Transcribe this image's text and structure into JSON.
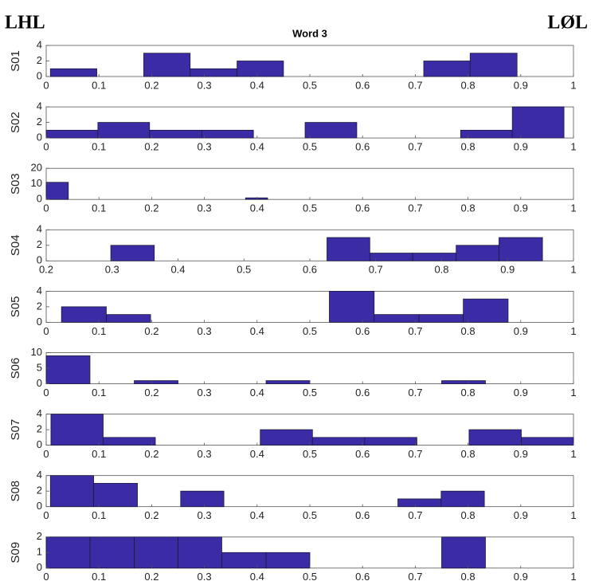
{
  "header": {
    "left": "LHL",
    "right": "LØL"
  },
  "chart_data": [
    {
      "type": "histogram",
      "title": "Word 3",
      "ylabel": "S01",
      "color": "#3b2ca6",
      "bins": [
        0.008,
        0.096,
        0.185,
        0.273,
        0.362,
        0.45,
        0.539,
        0.627,
        0.716,
        0.804,
        0.893
      ],
      "counts": [
        1,
        0,
        3,
        1,
        2,
        0,
        0,
        0,
        2,
        3
      ],
      "xlim": [
        0,
        1
      ],
      "xticks": [
        0,
        0.1,
        0.2,
        0.3,
        0.4,
        0.5,
        0.6,
        0.7,
        0.8,
        0.9,
        1
      ],
      "ylim": [
        0,
        4
      ],
      "yticks": [
        0,
        2,
        4
      ]
    },
    {
      "type": "histogram",
      "ylabel": "S02",
      "color": "#3b2ca6",
      "bins": [
        0,
        0.098,
        0.196,
        0.295,
        0.393,
        0.491,
        0.589,
        0.687,
        0.786,
        0.884,
        0.982
      ],
      "counts": [
        1,
        2,
        1,
        1,
        0,
        2,
        0,
        0,
        1,
        4
      ],
      "xlim": [
        0,
        1
      ],
      "xticks": [
        0,
        0.1,
        0.2,
        0.3,
        0.4,
        0.5,
        0.6,
        0.7,
        0.8,
        0.9,
        1
      ],
      "ylim": [
        0,
        4
      ],
      "yticks": [
        0,
        2,
        4
      ]
    },
    {
      "type": "histogram",
      "ylabel": "S03",
      "color": "#3b2ca6",
      "bins": [
        0,
        0.042,
        0.084,
        0.126,
        0.168,
        0.21,
        0.252,
        0.294,
        0.336,
        0.378,
        0.42
      ],
      "counts": [
        11,
        0,
        0,
        0,
        0,
        0,
        0,
        0,
        0,
        1
      ],
      "xlim": [
        0,
        1
      ],
      "xticks": [
        0,
        0.1,
        0.2,
        0.3,
        0.4,
        0.5,
        0.6,
        0.7,
        0.8,
        0.9,
        1
      ],
      "ylim": [
        0,
        20
      ],
      "yticks": [
        0,
        10,
        20
      ]
    },
    {
      "type": "histogram",
      "ylabel": "S04",
      "color": "#3b2ca6",
      "bins": [
        0.298,
        0.364,
        0.429,
        0.495,
        0.56,
        0.626,
        0.691,
        0.756,
        0.822,
        0.887,
        0.953
      ],
      "counts": [
        2,
        0,
        0,
        0,
        0,
        3,
        1,
        1,
        2,
        3
      ],
      "xlim": [
        0.2,
        1
      ],
      "xticks": [
        0.2,
        0.3,
        0.4,
        0.5,
        0.6,
        0.7,
        0.8,
        0.9,
        1
      ],
      "ylim": [
        0,
        4
      ],
      "yticks": [
        0,
        2,
        4
      ]
    },
    {
      "type": "histogram",
      "ylabel": "S05",
      "color": "#3b2ca6",
      "bins": [
        0.029,
        0.114,
        0.198,
        0.283,
        0.368,
        0.452,
        0.537,
        0.622,
        0.707,
        0.791,
        0.876
      ],
      "counts": [
        2,
        1,
        0,
        0,
        0,
        0,
        4,
        1,
        1,
        3
      ],
      "xlim": [
        0,
        1
      ],
      "xticks": [
        0,
        0.1,
        0.2,
        0.3,
        0.4,
        0.5,
        0.6,
        0.7,
        0.8,
        0.9,
        1
      ],
      "ylim": [
        0,
        4
      ],
      "yticks": [
        0,
        2,
        4
      ]
    },
    {
      "type": "histogram",
      "ylabel": "S06",
      "color": "#3b2ca6",
      "bins": [
        0,
        0.083,
        0.167,
        0.25,
        0.333,
        0.417,
        0.5,
        0.583,
        0.667,
        0.75,
        0.833
      ],
      "counts": [
        9,
        0,
        1,
        0,
        0,
        1,
        0,
        0,
        0,
        1
      ],
      "xlim": [
        0,
        1
      ],
      "xticks": [
        0,
        0.1,
        0.2,
        0.3,
        0.4,
        0.5,
        0.6,
        0.7,
        0.8,
        0.9,
        1
      ],
      "ylim": [
        0,
        10
      ],
      "yticks": [
        0,
        5,
        10
      ]
    },
    {
      "type": "histogram",
      "ylabel": "S07",
      "color": "#3b2ca6",
      "bins": [
        0.009,
        0.108,
        0.207,
        0.306,
        0.406,
        0.505,
        0.604,
        0.703,
        0.802,
        0.901,
        1
      ],
      "counts": [
        4,
        1,
        0,
        0,
        2,
        1,
        1,
        0,
        2,
        1
      ],
      "xlim": [
        0,
        1
      ],
      "xticks": [
        0,
        0.1,
        0.2,
        0.3,
        0.4,
        0.5,
        0.6,
        0.7,
        0.8,
        0.9,
        1
      ],
      "ylim": [
        0,
        4
      ],
      "yticks": [
        0,
        2,
        4
      ]
    },
    {
      "type": "histogram",
      "ylabel": "S08",
      "color": "#3b2ca6",
      "bins": [
        0.008,
        0.09,
        0.173,
        0.255,
        0.337,
        0.42,
        0.502,
        0.584,
        0.667,
        0.749,
        0.831
      ],
      "counts": [
        4,
        3,
        0,
        2,
        0,
        0,
        0,
        0,
        1,
        2
      ],
      "xlim": [
        0,
        1
      ],
      "xticks": [
        0,
        0.1,
        0.2,
        0.3,
        0.4,
        0.5,
        0.6,
        0.7,
        0.8,
        0.9,
        1
      ],
      "ylim": [
        0,
        4
      ],
      "yticks": [
        0,
        2,
        4
      ]
    },
    {
      "type": "histogram",
      "ylabel": "S09",
      "color": "#3b2ca6",
      "bins": [
        0,
        0.083,
        0.167,
        0.25,
        0.333,
        0.417,
        0.5,
        0.583,
        0.667,
        0.75,
        0.833
      ],
      "counts": [
        2,
        2,
        2,
        2,
        1,
        1,
        0,
        0,
        0,
        2
      ],
      "xlim": [
        0,
        1
      ],
      "xticks": [
        0,
        0.1,
        0.2,
        0.3,
        0.4,
        0.5,
        0.6,
        0.7,
        0.8,
        0.9,
        1
      ],
      "ylim": [
        0,
        2
      ],
      "yticks": [
        0,
        1,
        2
      ]
    }
  ]
}
